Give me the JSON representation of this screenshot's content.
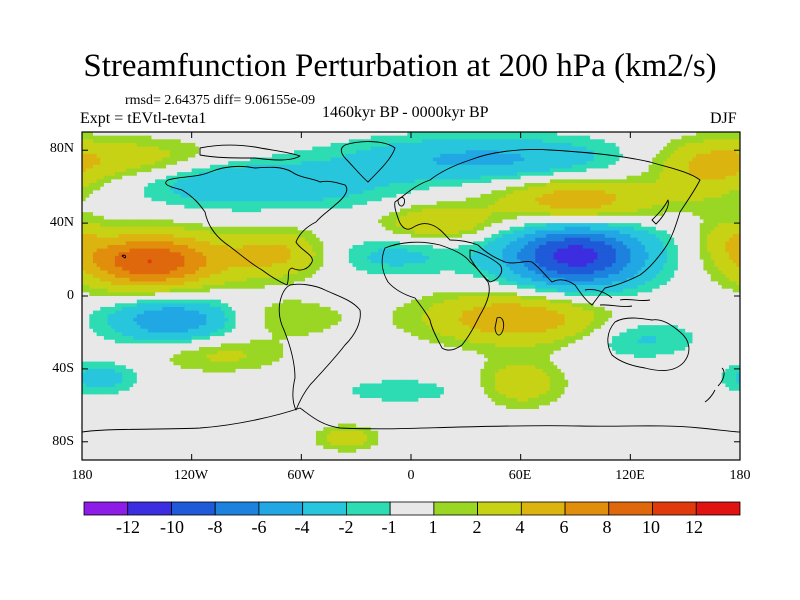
{
  "title": "Streamfunction Perturbation at 200 hPa (km2/s)",
  "stats": "rmsd= 2.64375 diff= 9.06155e-09",
  "experiment": "Expt = tEVtl-tevta1",
  "period": "1460kyr BP - 0000kyr BP",
  "season": "DJF",
  "axes": {
    "y_ticks": [
      {
        "label": "80N",
        "lat": 80
      },
      {
        "label": "40N",
        "lat": 40
      },
      {
        "label": "0",
        "lat": 0
      },
      {
        "label": "40S",
        "lat": -40
      },
      {
        "label": "80S",
        "lat": -80
      }
    ],
    "x_ticks": [
      {
        "label": "180",
        "lon": -180
      },
      {
        "label": "120W",
        "lon": -120
      },
      {
        "label": "60W",
        "lon": -60
      },
      {
        "label": "0",
        "lon": 0
      },
      {
        "label": "60E",
        "lon": 60
      },
      {
        "label": "120E",
        "lon": 120
      },
      {
        "label": "180",
        "lon": 180
      }
    ],
    "lat_range": [
      -90,
      90
    ],
    "lon_range": [
      -180,
      180
    ]
  },
  "colorbar": {
    "colors": [
      "#8c1ce6",
      "#3c2ee0",
      "#1f5ad8",
      "#1c82de",
      "#21a8e4",
      "#28c6dc",
      "#2edcb4",
      "#e8e8e8",
      "#9ad624",
      "#c8d214",
      "#dcb410",
      "#e08e0c",
      "#e0680c",
      "#e03a0c",
      "#e01212"
    ],
    "labels": [
      "-12",
      "-10",
      "-8",
      "-6",
      "-4",
      "-2",
      "-1",
      "1",
      "2",
      "4",
      "6",
      "8",
      "10",
      "12"
    ]
  },
  "chart_data": {
    "type": "contour_map",
    "variable": "Streamfunction Perturbation at 200 hPa",
    "units": "km2/s",
    "levels": [
      -12,
      -10,
      -8,
      -6,
      -4,
      -2,
      -1,
      1,
      2,
      4,
      6,
      8,
      10,
      12
    ],
    "features": [
      {
        "lon": -143,
        "lat": 19,
        "value": 10,
        "sx": 28,
        "sy": 11
      },
      {
        "lon": -73,
        "lat": 23,
        "value": 4.5,
        "sx": 20,
        "sy": 9
      },
      {
        "lon": -130,
        "lat": -13,
        "value": -6,
        "sx": 25,
        "sy": 9
      },
      {
        "lon": -155,
        "lat": 75,
        "value": 3.5,
        "sx": 45,
        "sy": 8
      },
      {
        "lon": -100,
        "lat": 63,
        "value": -4,
        "sx": 35,
        "sy": 10
      },
      {
        "lon": -35,
        "lat": 58,
        "value": -1.5,
        "sx": 28,
        "sy": 9
      },
      {
        "lon": 15,
        "lat": 40,
        "value": 4,
        "sx": 22,
        "sy": 7
      },
      {
        "lon": 40,
        "lat": 75,
        "value": -4.5,
        "sx": 55,
        "sy": 9
      },
      {
        "lon": 90,
        "lat": 52,
        "value": 6,
        "sx": 30,
        "sy": 9
      },
      {
        "lon": 162,
        "lat": 68,
        "value": 3.5,
        "sx": 20,
        "sy": 12
      },
      {
        "lon": 90,
        "lat": 22,
        "value": -11,
        "sx": 28,
        "sy": 13
      },
      {
        "lon": -10,
        "lat": 22,
        "value": -2.5,
        "sx": 28,
        "sy": 8
      },
      {
        "lon": 175,
        "lat": 32,
        "value": 2.5,
        "sx": 12,
        "sy": 8
      },
      {
        "lon": 58,
        "lat": -12,
        "value": 6,
        "sx": 35,
        "sy": 10
      },
      {
        "lon": -70,
        "lat": -12,
        "value": 2,
        "sx": 25,
        "sy": 8
      },
      {
        "lon": -105,
        "lat": -32,
        "value": 2.5,
        "sx": 25,
        "sy": 7
      },
      {
        "lon": 125,
        "lat": -23,
        "value": -2.5,
        "sx": 22,
        "sy": 8
      },
      {
        "lon": 60,
        "lat": -48,
        "value": 3.5,
        "sx": 16,
        "sy": 9
      },
      {
        "lon": -5,
        "lat": -52,
        "value": -1.5,
        "sx": 30,
        "sy": 6
      },
      {
        "lon": -170,
        "lat": -45,
        "value": -3,
        "sx": 14,
        "sy": 6
      },
      {
        "lon": -35,
        "lat": -78,
        "value": 3,
        "sx": 12,
        "sy": 5
      }
    ]
  }
}
